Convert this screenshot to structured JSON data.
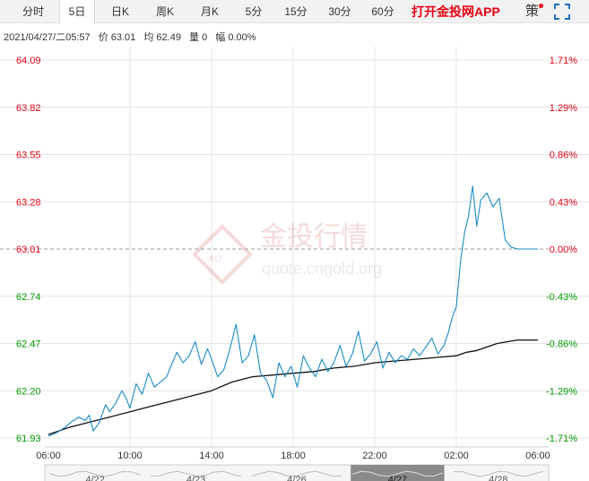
{
  "tabs": [
    {
      "label": "分时",
      "active": false
    },
    {
      "label": "5日",
      "active": true
    },
    {
      "label": "日K",
      "active": false
    },
    {
      "label": "周K",
      "active": false
    },
    {
      "label": "月K",
      "active": false
    },
    {
      "label": "5分",
      "active": false
    },
    {
      "label": "15分",
      "active": false
    },
    {
      "label": "30分",
      "active": false
    },
    {
      "label": "60分",
      "active": false
    }
  ],
  "toolbar": {
    "app_link": "打开金投网APP",
    "ce_button": "策",
    "fullscreen_icon": "fullscreen-icon"
  },
  "info": {
    "datetime": "2021/04/27/二05:57",
    "price": "价 63.01",
    "avg": "均 62.49",
    "volume": "量 0",
    "change": "幅 0.00%"
  },
  "watermark": {
    "text": "金投行情",
    "url": "quote.cngold.org"
  },
  "colors": {
    "up": "#e60012",
    "down": "#009900",
    "flat": "#e60012",
    "price_line": "#1a8bc4",
    "avg_line": "#111111",
    "grid": "#e4e4e4",
    "axis_text": "#333333"
  },
  "chart_data": {
    "type": "line",
    "title": "",
    "xlabel": "",
    "ylabel": "",
    "ylim": [
      61.93,
      64.09
    ],
    "base_price": 63.01,
    "y_ticks": [
      "64.09",
      "63.82",
      "63.55",
      "63.28",
      "63.01",
      "62.74",
      "62.47",
      "62.20",
      "61.93"
    ],
    "pct_ticks": [
      "1.71%",
      "1.29%",
      "0.86%",
      "0.43%",
      "0.00%",
      "-0.43%",
      "-0.86%",
      "-1.29%",
      "-1.71%"
    ],
    "x_tick_labels": [
      "06:00",
      "10:00",
      "14:00",
      "18:00",
      "22:00",
      "02:00",
      "06:00"
    ],
    "x_tick_hours": [
      0,
      4,
      8,
      12,
      16,
      20,
      24
    ],
    "x_range_hours": [
      0,
      24
    ],
    "grid": true,
    "navigator_dates": [
      "4/22",
      "4/23",
      "4/26",
      "4/27",
      "4/28"
    ],
    "navigator_selected": "4/27",
    "series": [
      {
        "name": "价",
        "x": [
          0,
          0.4,
          0.8,
          1.1,
          1.5,
          1.8,
          2.0,
          2.2,
          2.5,
          2.8,
          3.0,
          3.3,
          3.6,
          3.8,
          4.0,
          4.3,
          4.6,
          4.9,
          5.2,
          5.5,
          5.8,
          6.0,
          6.3,
          6.6,
          6.9,
          7.2,
          7.5,
          7.8,
          8.0,
          8.3,
          8.6,
          8.9,
          9.2,
          9.5,
          9.8,
          10.1,
          10.4,
          10.7,
          11.0,
          11.3,
          11.6,
          11.9,
          12.2,
          12.5,
          12.8,
          13.1,
          13.4,
          13.7,
          14.0,
          14.3,
          14.6,
          14.9,
          15.2,
          15.5,
          15.8,
          16.1,
          16.4,
          16.7,
          17.0,
          17.3,
          17.6,
          17.9,
          18.2,
          18.5,
          18.8,
          19.1,
          19.4,
          19.6,
          19.8,
          20.0,
          20.2,
          20.4,
          20.6,
          20.8,
          21.0,
          21.2,
          21.5,
          21.8,
          22.1,
          22.4,
          22.7,
          23.0,
          23.3,
          23.6,
          24.0
        ],
        "values": [
          61.94,
          61.96,
          61.99,
          62.02,
          62.05,
          62.03,
          62.06,
          61.97,
          62.02,
          62.12,
          62.08,
          62.13,
          62.2,
          62.16,
          62.1,
          62.24,
          62.18,
          62.3,
          62.22,
          62.25,
          62.28,
          62.34,
          62.42,
          62.36,
          62.4,
          62.48,
          62.35,
          62.44,
          62.38,
          62.28,
          62.32,
          62.44,
          62.58,
          62.36,
          62.4,
          62.52,
          62.3,
          62.26,
          62.16,
          62.36,
          62.28,
          62.34,
          62.22,
          62.4,
          62.33,
          62.28,
          62.38,
          62.31,
          62.36,
          62.46,
          62.34,
          62.41,
          62.54,
          62.37,
          62.41,
          62.48,
          62.33,
          62.42,
          62.36,
          62.4,
          62.38,
          62.44,
          62.4,
          62.45,
          62.5,
          62.41,
          62.46,
          62.53,
          62.62,
          62.68,
          62.93,
          63.1,
          63.2,
          63.37,
          63.14,
          63.29,
          63.33,
          63.25,
          63.3,
          63.06,
          63.02,
          63.01,
          63.01,
          63.01,
          63.01
        ]
      },
      {
        "name": "均",
        "x": [
          0,
          1,
          2,
          3,
          4,
          5,
          6,
          7,
          8,
          9,
          10,
          11,
          12,
          13,
          14,
          15,
          16,
          17,
          18,
          19,
          20,
          20.5,
          21,
          21.5,
          22,
          22.5,
          23,
          23.5,
          24
        ],
        "values": [
          61.95,
          61.99,
          62.02,
          62.05,
          62.08,
          62.11,
          62.14,
          62.17,
          62.2,
          62.25,
          62.28,
          62.29,
          62.3,
          62.31,
          62.33,
          62.34,
          62.36,
          62.37,
          62.38,
          62.39,
          62.4,
          62.42,
          62.43,
          62.45,
          62.47,
          62.48,
          62.49,
          62.49,
          62.49
        ]
      }
    ]
  }
}
